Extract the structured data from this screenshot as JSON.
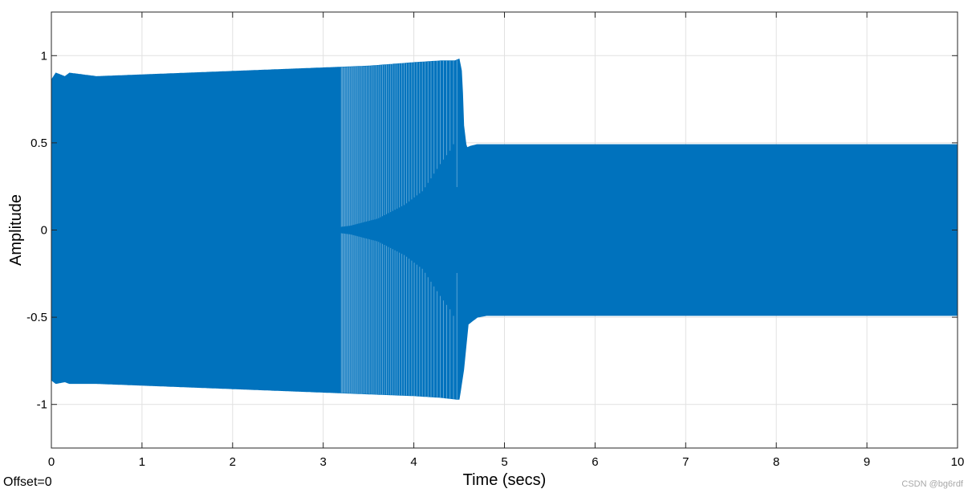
{
  "chart_data": {
    "type": "line",
    "title": "",
    "xlabel": "Time (secs)",
    "ylabel": "Amplitude",
    "xlim": [
      0,
      10
    ],
    "ylim": [
      -1.25,
      1.25
    ],
    "x_ticks": [
      0,
      1,
      2,
      3,
      4,
      5,
      6,
      7,
      8,
      9,
      10
    ],
    "y_ticks": [
      -1,
      -0.5,
      0,
      0.5,
      1
    ],
    "x_tick_labels": [
      "0",
      "1",
      "2",
      "3",
      "4",
      "5",
      "6",
      "7",
      "8",
      "9",
      "10"
    ],
    "y_tick_labels": [
      "-1",
      "-0.5",
      "0",
      "0.5",
      "1"
    ],
    "grid": true,
    "line_color": "#0072BD",
    "series": [
      {
        "envelope_upper": {
          "x": [
            0.0,
            0.05,
            0.15,
            0.2,
            0.5,
            1.0,
            1.5,
            2.0,
            2.5,
            3.0,
            3.5,
            4.0,
            4.3,
            4.45,
            4.5,
            4.53,
            4.55,
            4.58,
            4.62,
            4.7,
            4.8,
            5.0,
            6.0,
            7.0,
            8.0,
            9.0,
            10.0
          ],
          "y": [
            0.86,
            0.9,
            0.88,
            0.9,
            0.88,
            0.89,
            0.9,
            0.91,
            0.92,
            0.93,
            0.94,
            0.96,
            0.97,
            0.97,
            0.98,
            0.9,
            0.6,
            0.47,
            0.48,
            0.49,
            0.49,
            0.49,
            0.49,
            0.49,
            0.49,
            0.49,
            0.49
          ]
        },
        "envelope_lower": {
          "x": [
            0.0,
            0.05,
            0.15,
            0.2,
            0.5,
            1.0,
            1.5,
            2.0,
            2.5,
            3.0,
            3.5,
            4.0,
            4.3,
            4.47,
            4.5,
            4.55,
            4.6,
            4.65,
            4.7,
            4.8,
            5.0,
            6.0,
            7.0,
            8.0,
            9.0,
            10.0
          ],
          "y": [
            -0.86,
            -0.88,
            -0.87,
            -0.88,
            -0.88,
            -0.89,
            -0.9,
            -0.91,
            -0.92,
            -0.93,
            -0.94,
            -0.95,
            -0.96,
            -0.97,
            -0.97,
            -0.8,
            -0.54,
            -0.52,
            -0.5,
            -0.49,
            -0.49,
            -0.49,
            -0.49,
            -0.49,
            -0.49,
            -0.49
          ]
        },
        "inner_gap": {
          "x": [
            3.0,
            3.3,
            3.6,
            3.9,
            4.1,
            4.3,
            4.4,
            4.45,
            4.5,
            4.55,
            4.6
          ],
          "upper_y": [
            0.0,
            0.02,
            0.06,
            0.14,
            0.22,
            0.38,
            0.45,
            0.5,
            0.0,
            0.0,
            0.0
          ],
          "lower_y": [
            0.0,
            -0.02,
            -0.06,
            -0.14,
            -0.22,
            -0.38,
            -0.45,
            -0.5,
            0.0,
            0.0,
            0.0
          ]
        }
      }
    ]
  },
  "annotations": {
    "offset": "Offset=0",
    "watermark": "CSDN @bg6rdf"
  }
}
